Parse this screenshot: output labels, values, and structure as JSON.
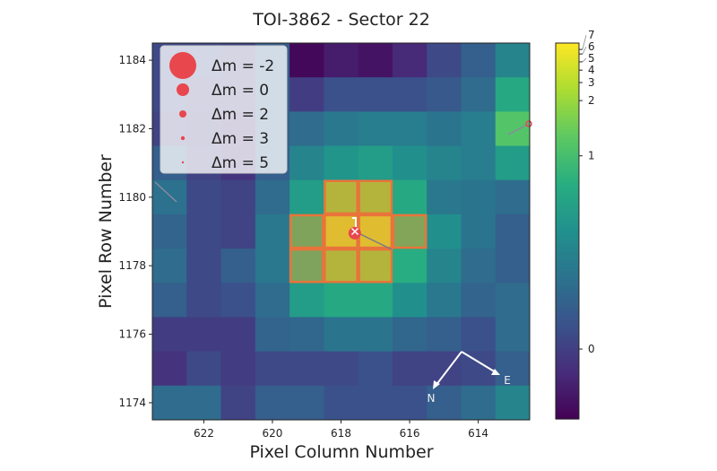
{
  "chart_data": {
    "type": "heatmap",
    "title": "TOI-3862 - Sector 22",
    "xlabel": "Pixel Column Number",
    "ylabel": "Pixel Row Number",
    "columns": [
      623,
      622,
      621,
      620,
      619,
      618,
      617,
      616,
      615,
      614,
      613
    ],
    "rows": [
      1184,
      1183,
      1182,
      1181,
      1180,
      1179,
      1178,
      1177,
      1176,
      1175,
      1174
    ],
    "x_ticks": [
      622,
      620,
      618,
      616,
      614
    ],
    "y_ticks": [
      1184,
      1182,
      1180,
      1178,
      1176,
      1174
    ],
    "x_axis_inverted": true,
    "colormap": "viridis",
    "colorbar_ticks": [
      7,
      6,
      5,
      4,
      3,
      2,
      1,
      0
    ],
    "colorbar_range": [
      -0.36,
      7.5
    ],
    "colorbar_scale": "nonlinear stretch",
    "values": [
      [
        0.07,
        0.07,
        0.03,
        0.22,
        -0.32,
        -0.21,
        -0.26,
        -0.13,
        0.07,
        0.22,
        0.51
      ],
      [
        0.07,
        0.03,
        0.03,
        0.22,
        -0.01,
        0.12,
        0.12,
        0.12,
        0.18,
        0.32,
        0.81
      ],
      [
        0.03,
        -0.01,
        -0.07,
        0.22,
        0.32,
        0.42,
        0.46,
        0.46,
        0.38,
        0.46,
        1.2
      ],
      [
        0.22,
        0.03,
        -0.07,
        0.22,
        0.51,
        0.65,
        0.71,
        0.61,
        0.51,
        0.46,
        0.71
      ],
      [
        0.36,
        0.07,
        0.03,
        0.32,
        0.71,
        2.0,
        2.0,
        0.81,
        0.42,
        0.38,
        0.32
      ],
      [
        0.26,
        0.07,
        0.03,
        0.42,
        1.04,
        5.0,
        5.0,
        1.1,
        0.61,
        0.38,
        0.22
      ],
      [
        0.32,
        0.07,
        0.22,
        0.42,
        1.0,
        2.0,
        2.0,
        0.85,
        0.51,
        0.32,
        0.22
      ],
      [
        0.22,
        0.07,
        0.12,
        0.32,
        0.71,
        0.81,
        0.81,
        0.61,
        0.42,
        0.26,
        0.32
      ],
      [
        -0.01,
        -0.01,
        -0.01,
        0.26,
        0.28,
        0.38,
        0.38,
        0.28,
        0.22,
        0.12,
        0.32
      ],
      [
        -0.07,
        0.07,
        -0.01,
        0.07,
        0.07,
        0.07,
        0.12,
        0.03,
        0.03,
        0.07,
        0.22
      ],
      [
        0.32,
        0.32,
        0.03,
        0.22,
        0.22,
        0.12,
        0.12,
        0.12,
        0.22,
        0.32,
        0.51
      ]
    ],
    "aperture": [
      [
        618,
        1180
      ],
      [
        617,
        1180
      ],
      [
        619,
        1179
      ],
      [
        618,
        1179
      ],
      [
        617,
        1179
      ],
      [
        616,
        1179
      ],
      [
        619,
        1178
      ],
      [
        618,
        1178
      ],
      [
        617,
        1178
      ]
    ],
    "aperture_color": "#e8743b",
    "target": {
      "column": 617.6,
      "row": 1178.95,
      "color": "#e8474e"
    },
    "legend": {
      "placement": "upper-left",
      "entries": [
        {
          "label": "Δm =  -2",
          "dm": -2
        },
        {
          "label": "Δm =  0",
          "dm": 0
        },
        {
          "label": "Δm =  2",
          "dm": 2
        },
        {
          "label": "Δm =  3",
          "dm": 3
        },
        {
          "label": "Δm =  5",
          "dm": 5
        }
      ],
      "marker_color": "#e8474e"
    },
    "compass": {
      "north_label": "N",
      "east_label": "E"
    }
  }
}
